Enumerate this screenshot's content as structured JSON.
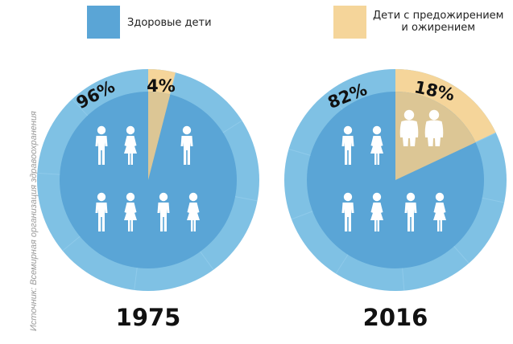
{
  "legend": {
    "healthy_label": "Здоровые дети",
    "overweight_label_line1": "Дети с предожирением",
    "overweight_label_line2": "и ожирением",
    "healthy_color": "#5aa5d6",
    "overweight_color": "#f5d59a"
  },
  "source": "Источник: Всемирная организация здравоохранения",
  "colors": {
    "outer_ring": "#7fc1e4",
    "inner_disc": "#5aa5d6",
    "overweight_outer": "#f5d59a",
    "overweight_inner": "#dcc695",
    "figure": "#ffffff",
    "figure_overweight": "#ffffff"
  },
  "chart_data": [
    {
      "type": "pie",
      "year": "1975",
      "slices": [
        {
          "category": "Здоровые дети",
          "value": 96,
          "label": "96%"
        },
        {
          "category": "Дети с предожирением и ожирением",
          "value": 4,
          "label": "4%"
        }
      ],
      "icons": {
        "healthy": 7,
        "overweight": 0
      }
    },
    {
      "type": "pie",
      "year": "2016",
      "slices": [
        {
          "category": "Здоровые дети",
          "value": 82,
          "label": "82%"
        },
        {
          "category": "Дети с предожирением и ожирением",
          "value": 18,
          "label": "18%"
        }
      ],
      "icons": {
        "healthy": 6,
        "overweight": 2
      }
    }
  ]
}
